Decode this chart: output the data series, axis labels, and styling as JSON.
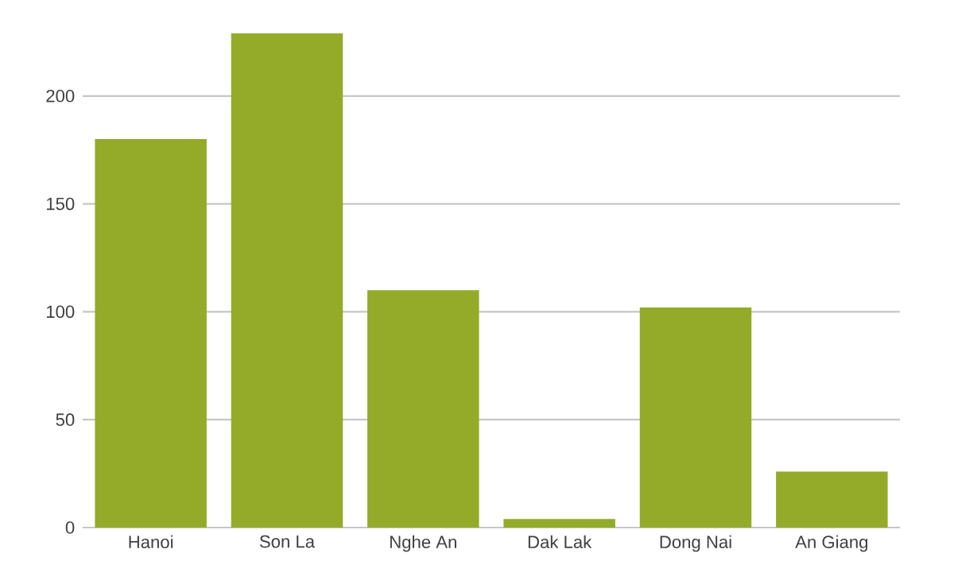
{
  "chart_data": {
    "type": "bar",
    "categories": [
      "Hanoi",
      "Son La",
      "Nghe An",
      "Dak Lak",
      "Dong Nai",
      "An Giang"
    ],
    "values": [
      180,
      229,
      110,
      4,
      102,
      26
    ],
    "color": "#93ab29",
    "ylim": [
      0,
      229
    ],
    "yticks": [
      0,
      50,
      100,
      150,
      200
    ],
    "grid": "y"
  }
}
